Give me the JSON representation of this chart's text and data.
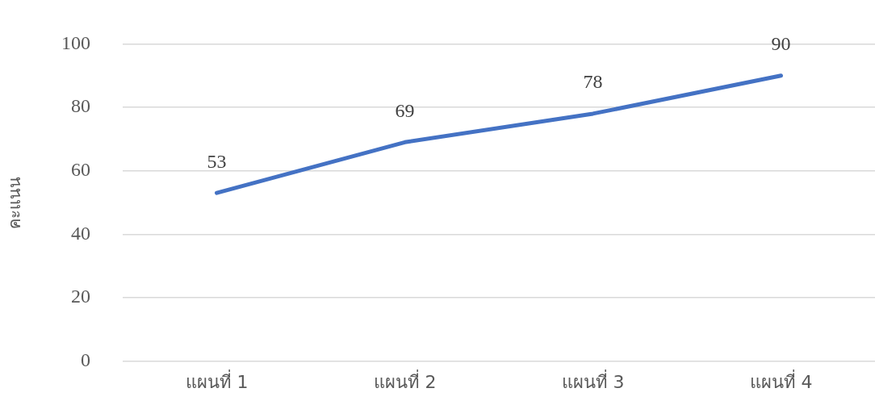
{
  "chart_data": {
    "type": "line",
    "ylabel": "คะแนน",
    "categories": [
      "แผนที่ 1",
      "แผนที่ 2",
      "แผนที่ 3",
      "แผนที่ 4"
    ],
    "series": [
      {
        "color": "#4472c4",
        "values": [
          53,
          69,
          78,
          90
        ]
      }
    ],
    "ylim": [
      0,
      100
    ],
    "yticks": [
      0,
      20,
      40,
      60,
      80,
      100
    ],
    "grid": "y",
    "legend": false,
    "marker": "none",
    "line_style": "solid",
    "data_labels": true
  }
}
